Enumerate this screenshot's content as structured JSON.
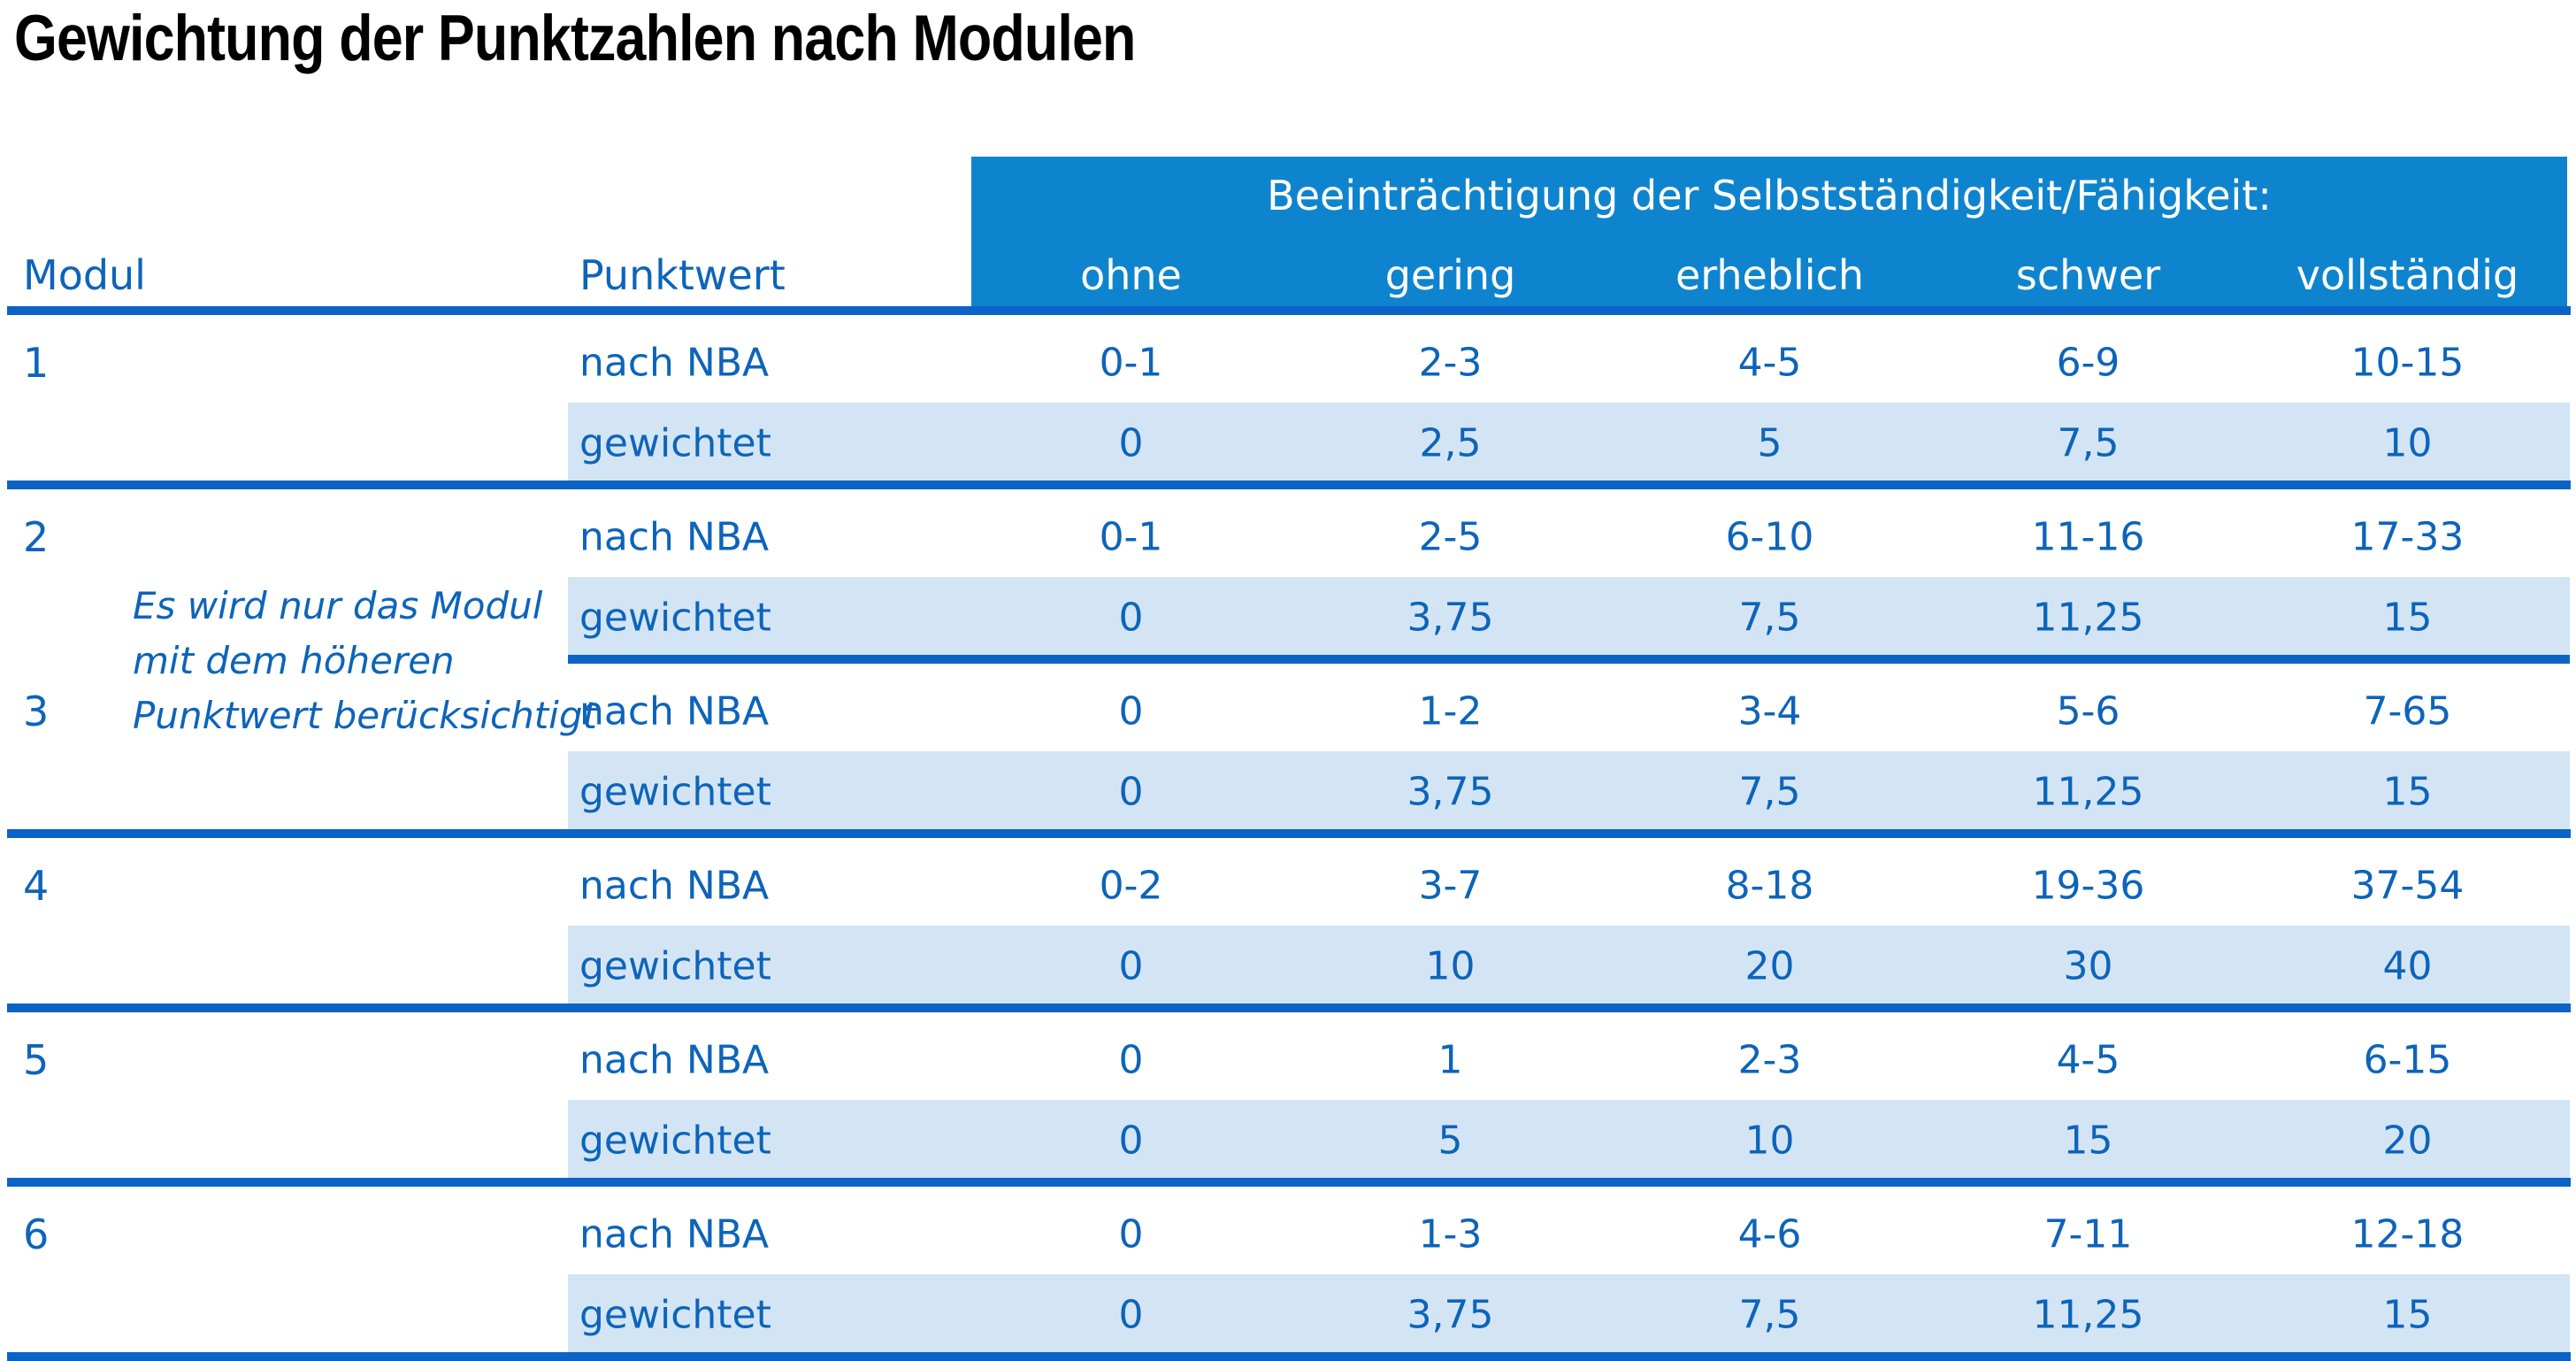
{
  "page_title": "Gewichtung der Punktzahlen nach Modulen",
  "theme": {
    "title_black": "#000000",
    "band_blue": "#0f84ce",
    "rule_blue": "#0c63c6",
    "text_blue": "#0d64ba",
    "row_shade": "#d3e5f4",
    "band_text_white": "#ffffff",
    "page_background": "#ffffff"
  },
  "table": {
    "band_heading": "Beeinträchtigung der Selbstständigkeit/Fähigkeit:",
    "severity_labels": [
      "ohne",
      "gering",
      "erheblich",
      "schwer",
      "vollständig"
    ],
    "module_column_header": "Modul",
    "pointvalue_column_header": "Punktwert",
    "row_label_nba": "nach NBA",
    "row_label_weighted": "gewichtet",
    "note_lines": [
      "Es wird nur das Modul",
      "mit dem höheren",
      "Punktwert berücksichtigt"
    ],
    "modules": [
      {
        "number": "1",
        "nba_values": [
          "0-1",
          "2-3",
          "4-5",
          "6-9",
          "10-15"
        ],
        "weighted_values": [
          "0",
          "2,5",
          "5",
          "7,5",
          "10"
        ]
      },
      {
        "number": "2",
        "nba_values": [
          "0-1",
          "2-5",
          "6-10",
          "11-16",
          "17-33"
        ],
        "weighted_values": [
          "0",
          "3,75",
          "7,5",
          "11,25",
          "15"
        ],
        "partial_rule": true
      },
      {
        "number": "3",
        "nba_values": [
          "0",
          "1-2",
          "3-4",
          "5-6",
          "7-65"
        ],
        "weighted_values": [
          "0",
          "3,75",
          "7,5",
          "11,25",
          "15"
        ]
      },
      {
        "number": "4",
        "nba_values": [
          "0-2",
          "3-7",
          "8-18",
          "19-36",
          "37-54"
        ],
        "weighted_values": [
          "0",
          "10",
          "20",
          "30",
          "40"
        ]
      },
      {
        "number": "5",
        "nba_values": [
          "0",
          "1",
          "2-3",
          "4-5",
          "6-15"
        ],
        "weighted_values": [
          "0",
          "5",
          "10",
          "15",
          "20"
        ]
      },
      {
        "number": "6",
        "nba_values": [
          "0",
          "1-3",
          "4-6",
          "7-11",
          "12-18"
        ],
        "weighted_values": [
          "0",
          "3,75",
          "7,5",
          "11,25",
          "15"
        ]
      }
    ]
  }
}
